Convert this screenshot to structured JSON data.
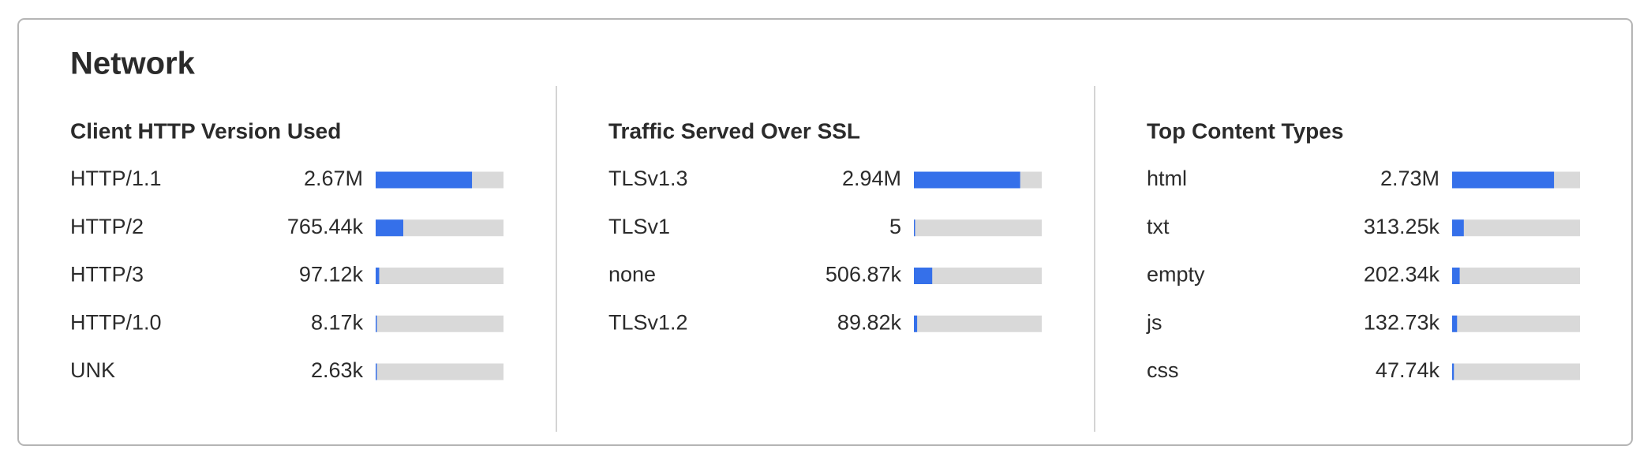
{
  "header": {
    "title": "Network"
  },
  "panels": [
    {
      "title": "Client HTTP Version Used",
      "rows": [
        {
          "label": "HTTP/1.1",
          "value": 2670000,
          "value_label": "2.67M"
        },
        {
          "label": "HTTP/2",
          "value": 765440,
          "value_label": "765.44k"
        },
        {
          "label": "HTTP/3",
          "value": 97120,
          "value_label": "97.12k"
        },
        {
          "label": "HTTP/1.0",
          "value": 8170,
          "value_label": "8.17k"
        },
        {
          "label": "UNK",
          "value": 2630,
          "value_label": "2.63k"
        }
      ]
    },
    {
      "title": "Traffic Served Over SSL",
      "rows": [
        {
          "label": "TLSv1.3",
          "value": 2940000,
          "value_label": "2.94M"
        },
        {
          "label": "TLSv1",
          "value": 5
        },
        {
          "label": "none",
          "value": 506870,
          "value_label": "506.87k"
        },
        {
          "label": "TLSv1.2",
          "value": 89820,
          "value_label": "89.82k"
        }
      ]
    },
    {
      "title": "Top Content Types",
      "rows": [
        {
          "label": "html",
          "value": 2730000,
          "value_label": "2.73M"
        },
        {
          "label": "txt",
          "value": 313250,
          "value_label": "313.25k"
        },
        {
          "label": "empty",
          "value": 202340,
          "value_label": "202.34k"
        },
        {
          "label": "js",
          "value": 132730,
          "value_label": "132.73k"
        },
        {
          "label": "css",
          "value": 47740,
          "value_label": "47.74k"
        }
      ]
    }
  ]
}
